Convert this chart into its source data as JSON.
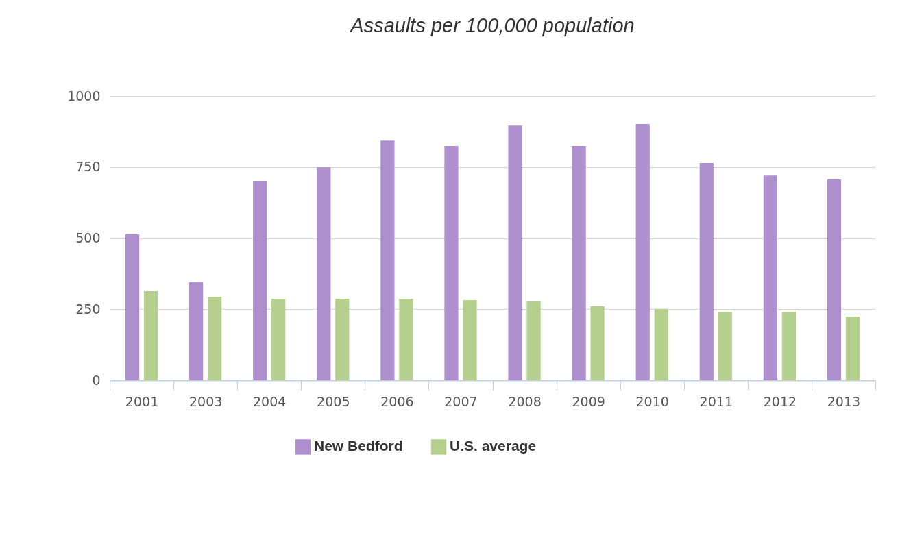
{
  "chart_data": {
    "type": "bar",
    "title": "Assaults per 100,000 population",
    "categories": [
      "2001",
      "2003",
      "2004",
      "2005",
      "2006",
      "2007",
      "2008",
      "2009",
      "2010",
      "2011",
      "2012",
      "2013"
    ],
    "series": [
      {
        "name": "New Bedford",
        "color": "#ae90cf",
        "values": [
          513,
          345,
          701,
          749,
          843,
          824,
          896,
          824,
          901,
          764,
          720,
          706
        ]
      },
      {
        "name": "U.S. average",
        "color": "#b5cf8f",
        "values": [
          313,
          294,
          287,
          287,
          287,
          282,
          277,
          260,
          251,
          241,
          241,
          224
        ]
      }
    ],
    "ylim": [
      0,
      1000
    ],
    "yticks": [
      0,
      250,
      500,
      750,
      1000
    ],
    "grid": "y",
    "legend": "bottom"
  }
}
